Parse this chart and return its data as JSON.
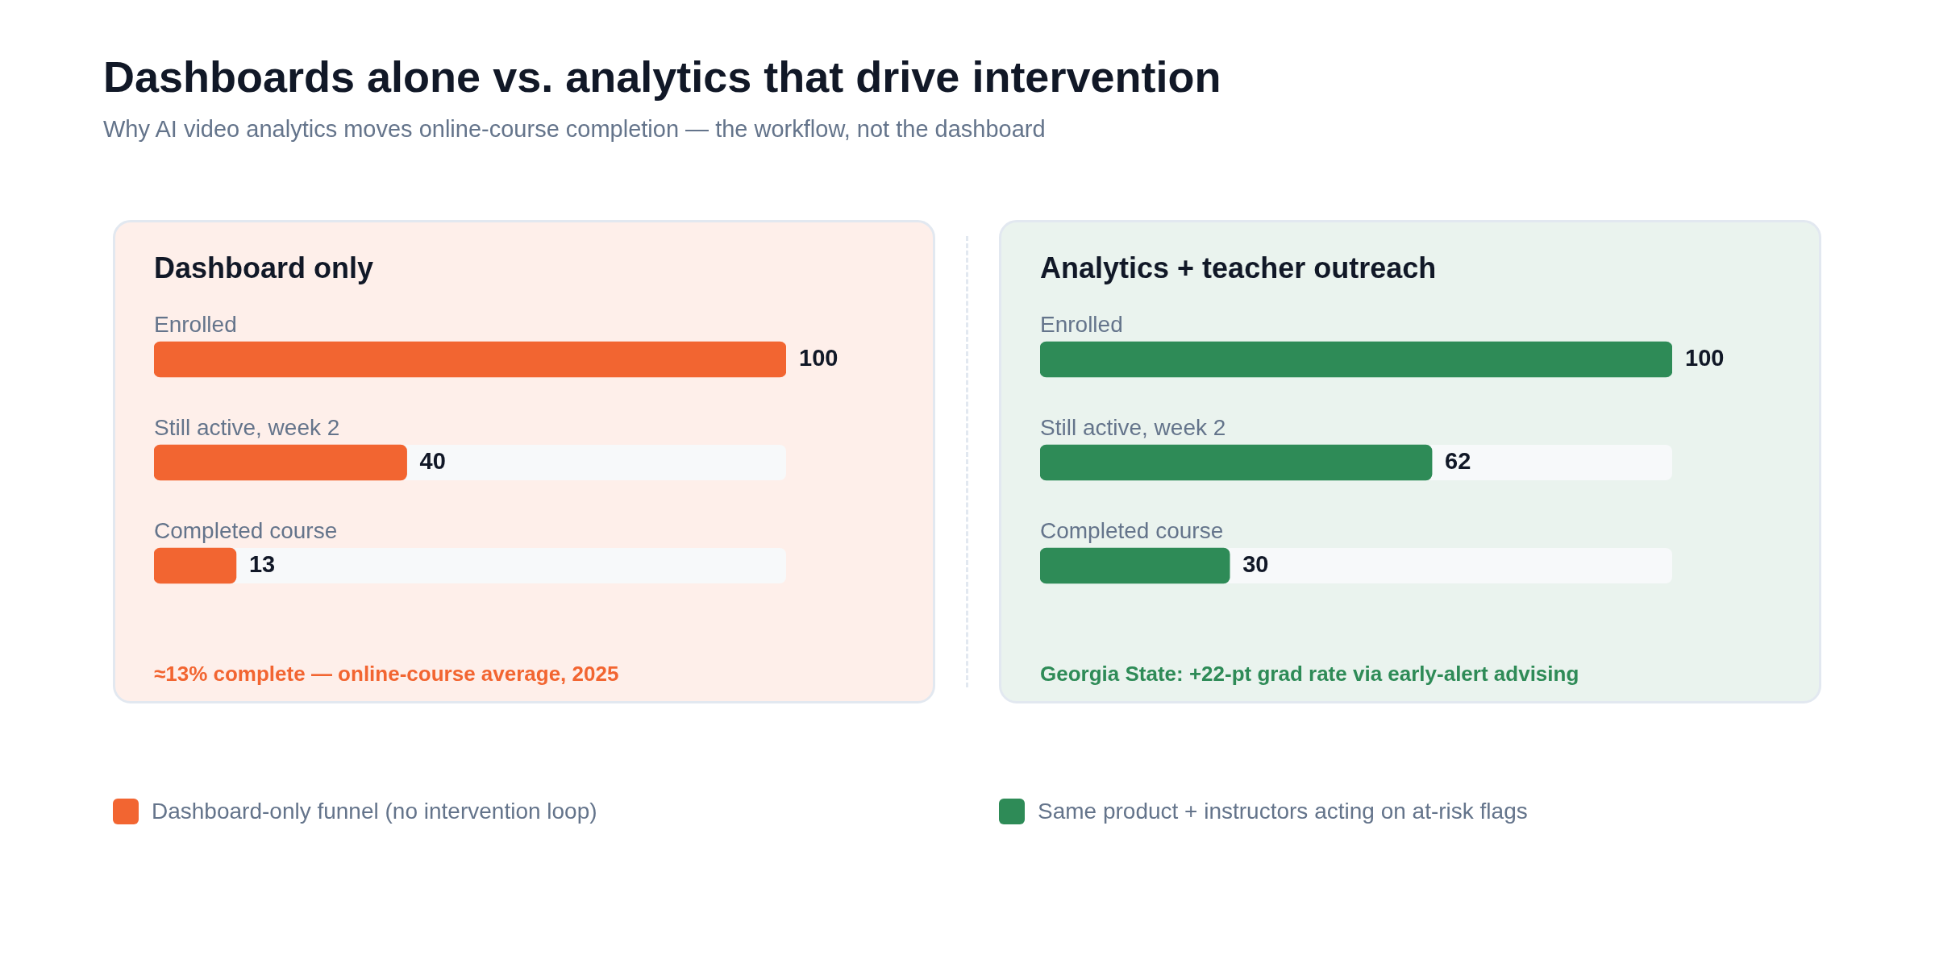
{
  "chart_data": [
    {
      "type": "other",
      "title": "Dashboards alone vs. analytics that drive intervention",
      "subtitle": "Why AI video analytics moves online-course completion — the workflow, not the dashboard"
    },
    {
      "type": "bar",
      "orientation": "horizontal",
      "title": "Dashboard only",
      "categories": [
        "Enrolled",
        "Still active, week 2",
        "Completed course"
      ],
      "xlim": [
        0,
        100
      ],
      "data_labels": true,
      "legend": "bottom",
      "annotations": [
        "≈13% complete — online-course average, 2025"
      ],
      "series": [
        {
          "name": "Dashboard-only funnel (no intervention loop)",
          "color": "#f26531",
          "values": [
            100,
            40,
            13
          ]
        }
      ]
    },
    {
      "type": "bar",
      "orientation": "horizontal",
      "title": "Analytics + teacher outreach",
      "categories": [
        "Enrolled",
        "Still active, week 2",
        "Completed course"
      ],
      "xlim": [
        0,
        100
      ],
      "data_labels": true,
      "legend": "bottom",
      "annotations": [
        "Georgia State: +22-pt grad rate via early-alert advising"
      ],
      "series": [
        {
          "name": "Same product + instructors acting on at-risk flags",
          "color": "#2e8b57",
          "values": [
            100,
            62,
            30
          ]
        }
      ]
    }
  ]
}
